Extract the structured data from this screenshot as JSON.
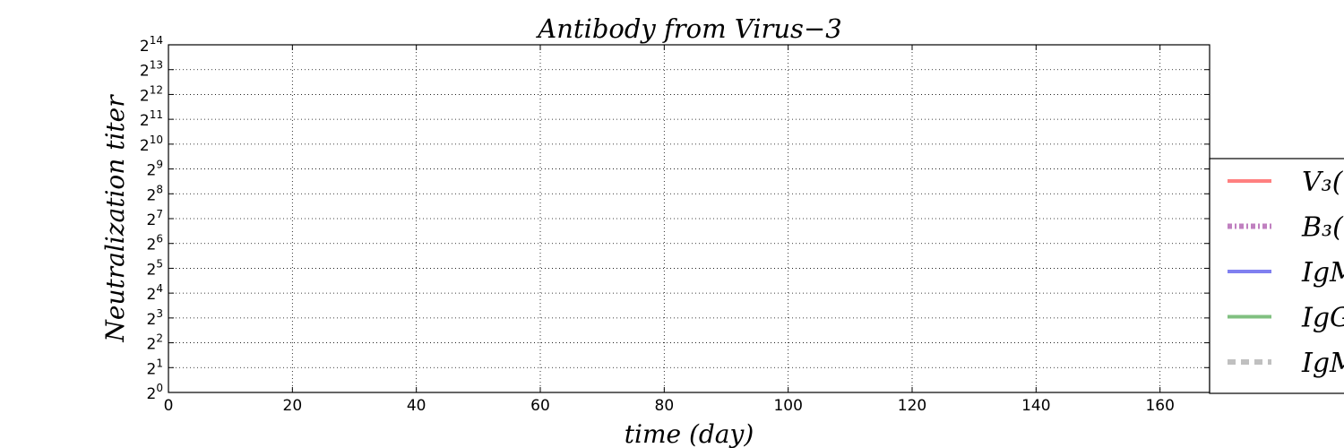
{
  "chart_data": {
    "type": "line",
    "title": "Antibody from Virus−3",
    "xlabel": "time (day)",
    "ylabel": "Neutralization  titer",
    "xlim": [
      0,
      168
    ],
    "ylim_log2": [
      0,
      14
    ],
    "y_scale": "log2",
    "x_ticks": [
      0,
      20,
      40,
      60,
      80,
      100,
      120,
      140,
      160
    ],
    "y_ticks_base": "2",
    "y_tick_exponents": [
      0,
      1,
      2,
      3,
      4,
      5,
      6,
      7,
      8,
      9,
      10,
      11,
      12,
      13,
      14
    ],
    "grid": true,
    "legend_placement": "right, clipped",
    "series": [
      {
        "label": "V₃(t",
        "color": "#ff8080",
        "style": "solid"
      },
      {
        "label": "B₃(",
        "color": "#c080c0",
        "style": "dashdot"
      },
      {
        "label": "IgM",
        "color": "#8080f0",
        "style": "solid"
      },
      {
        "label": "IgG",
        "color": "#80c080",
        "style": "solid"
      },
      {
        "label": "IgM",
        "color": "#c0c0c0",
        "style": "dashed"
      }
    ]
  }
}
